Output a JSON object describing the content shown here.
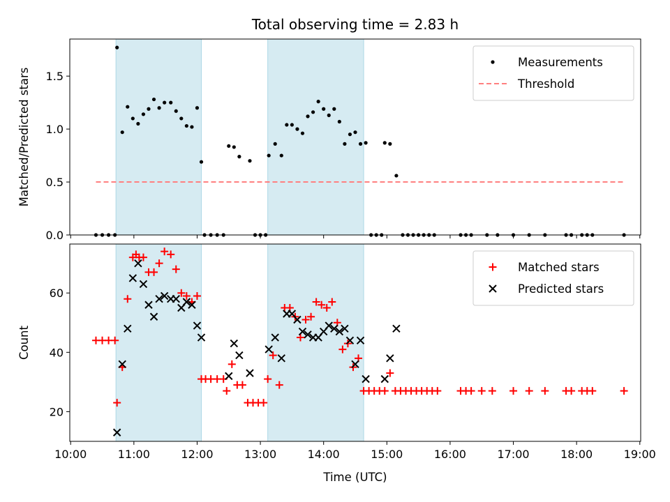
{
  "chart_data": [
    {
      "type": "scatter",
      "title": "Total observing time = 2.83 h",
      "xlabel": "",
      "ylabel": "Matched/Predicted stars",
      "xlim": [
        "10:00",
        "19:00"
      ],
      "ylim": [
        0,
        1.85
      ],
      "yticks": [
        "0.0",
        "0.5",
        "1.0",
        "1.5"
      ],
      "shaded_time_ranges": [
        [
          "10:43",
          "12:04"
        ],
        [
          "13:07",
          "14:38"
        ]
      ],
      "legend": {
        "position": "top-right",
        "entries": [
          "Measurements",
          "Threshold"
        ]
      },
      "series": [
        {
          "name": "Measurements",
          "marker": "dot",
          "color": "#000000",
          "points": [
            [
              "10:24",
              0
            ],
            [
              "10:30",
              0
            ],
            [
              "10:36",
              0
            ],
            [
              "10:42",
              0
            ],
            [
              "10:44",
              1.77
            ],
            [
              "10:49",
              0.97
            ],
            [
              "10:54",
              1.21
            ],
            [
              "10:59",
              1.1
            ],
            [
              "11:04",
              1.05
            ],
            [
              "11:09",
              1.14
            ],
            [
              "11:14",
              1.19
            ],
            [
              "11:19",
              1.28
            ],
            [
              "11:24",
              1.2
            ],
            [
              "11:29",
              1.25
            ],
            [
              "11:35",
              1.25
            ],
            [
              "11:40",
              1.17
            ],
            [
              "11:45",
              1.1
            ],
            [
              "11:50",
              1.03
            ],
            [
              "11:55",
              1.02
            ],
            [
              "12:00",
              1.2
            ],
            [
              "12:04",
              0.69
            ],
            [
              "12:07",
              0
            ],
            [
              "12:13",
              0
            ],
            [
              "12:19",
              0
            ],
            [
              "12:25",
              0
            ],
            [
              "12:30",
              0.84
            ],
            [
              "12:35",
              0.83
            ],
            [
              "12:40",
              0.74
            ],
            [
              "12:50",
              0.7
            ],
            [
              "12:55",
              0
            ],
            [
              "13:00",
              0
            ],
            [
              "13:05",
              0
            ],
            [
              "13:08",
              0.75
            ],
            [
              "13:14",
              0.86
            ],
            [
              "13:20",
              0.75
            ],
            [
              "13:25",
              1.04
            ],
            [
              "13:30",
              1.04
            ],
            [
              "13:35",
              1.0
            ],
            [
              "13:40",
              0.96
            ],
            [
              "13:45",
              1.12
            ],
            [
              "13:50",
              1.16
            ],
            [
              "13:55",
              1.26
            ],
            [
              "14:00",
              1.19
            ],
            [
              "14:05",
              1.13
            ],
            [
              "14:10",
              1.19
            ],
            [
              "14:15",
              1.07
            ],
            [
              "14:20",
              0.86
            ],
            [
              "14:25",
              0.95
            ],
            [
              "14:30",
              0.97
            ],
            [
              "14:35",
              0.86
            ],
            [
              "14:40",
              0.87
            ],
            [
              "14:45",
              0
            ],
            [
              "14:50",
              0
            ],
            [
              "14:55",
              0
            ],
            [
              "14:58",
              0.87
            ],
            [
              "15:03",
              0.86
            ],
            [
              "15:09",
              0.56
            ],
            [
              "15:15",
              0
            ],
            [
              "15:20",
              0
            ],
            [
              "15:25",
              0
            ],
            [
              "15:30",
              0
            ],
            [
              "15:35",
              0
            ],
            [
              "15:40",
              0
            ],
            [
              "15:45",
              0
            ],
            [
              "16:10",
              0
            ],
            [
              "16:15",
              0
            ],
            [
              "16:20",
              0
            ],
            [
              "16:35",
              0
            ],
            [
              "16:45",
              0
            ],
            [
              "17:00",
              0
            ],
            [
              "17:15",
              0
            ],
            [
              "17:30",
              0
            ],
            [
              "17:50",
              0
            ],
            [
              "17:55",
              0
            ],
            [
              "18:05",
              0
            ],
            [
              "18:10",
              0
            ],
            [
              "18:15",
              0
            ],
            [
              "18:45",
              0
            ]
          ]
        },
        {
          "name": "Threshold",
          "marker": "dashed-line",
          "color": "#ff7f7f",
          "points": [
            [
              "10:24",
              0.5
            ],
            [
              "18:45",
              0.5
            ]
          ]
        }
      ]
    },
    {
      "type": "scatter",
      "title": "",
      "xlabel": "Time (UTC)",
      "ylabel": "Count",
      "xlim": [
        "10:00",
        "19:00"
      ],
      "ylim": [
        10,
        76.5
      ],
      "yticks": [
        "20",
        "40",
        "60"
      ],
      "xticks": [
        "10:00",
        "11:00",
        "12:00",
        "13:00",
        "14:00",
        "15:00",
        "16:00",
        "17:00",
        "18:00",
        "19:00"
      ],
      "shaded_time_ranges": [
        [
          "10:43",
          "12:04"
        ],
        [
          "13:07",
          "14:38"
        ]
      ],
      "legend": {
        "position": "top-right",
        "entries": [
          "Matched stars",
          "Predicted stars"
        ]
      },
      "series": [
        {
          "name": "Matched stars",
          "marker": "plus",
          "color": "#ff0000",
          "points": [
            [
              "10:24",
              44
            ],
            [
              "10:30",
              44
            ],
            [
              "10:36",
              44
            ],
            [
              "10:42",
              44
            ],
            [
              "10:44",
              23
            ],
            [
              "10:49",
              35
            ],
            [
              "10:54",
              58
            ],
            [
              "10:59",
              72
            ],
            [
              "11:02",
              73
            ],
            [
              "11:05",
              72
            ],
            [
              "11:09",
              72
            ],
            [
              "11:14",
              67
            ],
            [
              "11:19",
              67
            ],
            [
              "11:24",
              70
            ],
            [
              "11:29",
              74
            ],
            [
              "11:35",
              73
            ],
            [
              "11:40",
              68
            ],
            [
              "11:45",
              60
            ],
            [
              "11:50",
              59
            ],
            [
              "11:55",
              57
            ],
            [
              "12:00",
              59
            ],
            [
              "12:04",
              31
            ],
            [
              "12:08",
              31
            ],
            [
              "12:13",
              31
            ],
            [
              "12:19",
              31
            ],
            [
              "12:25",
              31
            ],
            [
              "12:28",
              27
            ],
            [
              "12:33",
              36
            ],
            [
              "12:38",
              29
            ],
            [
              "12:43",
              29
            ],
            [
              "12:48",
              23
            ],
            [
              "12:53",
              23
            ],
            [
              "12:58",
              23
            ],
            [
              "13:03",
              23
            ],
            [
              "13:07",
              31
            ],
            [
              "13:12",
              39
            ],
            [
              "13:18",
              29
            ],
            [
              "13:23",
              55
            ],
            [
              "13:28",
              55
            ],
            [
              "13:33",
              52
            ],
            [
              "13:38",
              45
            ],
            [
              "13:43",
              51
            ],
            [
              "13:48",
              52
            ],
            [
              "13:53",
              57
            ],
            [
              "13:58",
              56
            ],
            [
              "14:03",
              55
            ],
            [
              "14:08",
              57
            ],
            [
              "14:13",
              50
            ],
            [
              "14:18",
              41
            ],
            [
              "14:23",
              43
            ],
            [
              "14:28",
              35
            ],
            [
              "14:33",
              38
            ],
            [
              "14:38",
              27
            ],
            [
              "14:43",
              27
            ],
            [
              "14:48",
              27
            ],
            [
              "14:53",
              27
            ],
            [
              "14:58",
              27
            ],
            [
              "15:03",
              33
            ],
            [
              "15:08",
              27
            ],
            [
              "15:13",
              27
            ],
            [
              "15:18",
              27
            ],
            [
              "15:23",
              27
            ],
            [
              "15:28",
              27
            ],
            [
              "15:33",
              27
            ],
            [
              "15:38",
              27
            ],
            [
              "15:43",
              27
            ],
            [
              "15:48",
              27
            ],
            [
              "16:10",
              27
            ],
            [
              "16:15",
              27
            ],
            [
              "16:20",
              27
            ],
            [
              "16:30",
              27
            ],
            [
              "16:40",
              27
            ],
            [
              "17:00",
              27
            ],
            [
              "17:15",
              27
            ],
            [
              "17:30",
              27
            ],
            [
              "17:50",
              27
            ],
            [
              "17:55",
              27
            ],
            [
              "18:05",
              27
            ],
            [
              "18:10",
              27
            ],
            [
              "18:15",
              27
            ],
            [
              "18:45",
              27
            ]
          ]
        },
        {
          "name": "Predicted stars",
          "marker": "x",
          "color": "#000000",
          "points": [
            [
              "10:44",
              13
            ],
            [
              "10:49",
              36
            ],
            [
              "10:54",
              48
            ],
            [
              "10:59",
              65
            ],
            [
              "11:04",
              70
            ],
            [
              "11:09",
              63
            ],
            [
              "11:14",
              56
            ],
            [
              "11:19",
              52
            ],
            [
              "11:24",
              58
            ],
            [
              "11:29",
              59
            ],
            [
              "11:35",
              58
            ],
            [
              "11:40",
              58
            ],
            [
              "11:45",
              55
            ],
            [
              "11:50",
              57
            ],
            [
              "11:55",
              56
            ],
            [
              "12:00",
              49
            ],
            [
              "12:04",
              45
            ],
            [
              "12:30",
              32
            ],
            [
              "12:35",
              43
            ],
            [
              "12:40",
              39
            ],
            [
              "12:50",
              33
            ],
            [
              "13:08",
              41
            ],
            [
              "13:14",
              45
            ],
            [
              "13:20",
              38
            ],
            [
              "13:25",
              53
            ],
            [
              "13:30",
              53
            ],
            [
              "13:35",
              51
            ],
            [
              "13:40",
              47
            ],
            [
              "13:45",
              46
            ],
            [
              "13:50",
              45
            ],
            [
              "13:55",
              45
            ],
            [
              "14:00",
              47
            ],
            [
              "14:05",
              49
            ],
            [
              "14:10",
              48
            ],
            [
              "14:15",
              47
            ],
            [
              "14:20",
              48
            ],
            [
              "14:25",
              44
            ],
            [
              "14:30",
              36
            ],
            [
              "14:35",
              44
            ],
            [
              "14:40",
              31
            ],
            [
              "14:58",
              31
            ],
            [
              "15:03",
              38
            ],
            [
              "15:09",
              48
            ]
          ]
        }
      ]
    }
  ]
}
